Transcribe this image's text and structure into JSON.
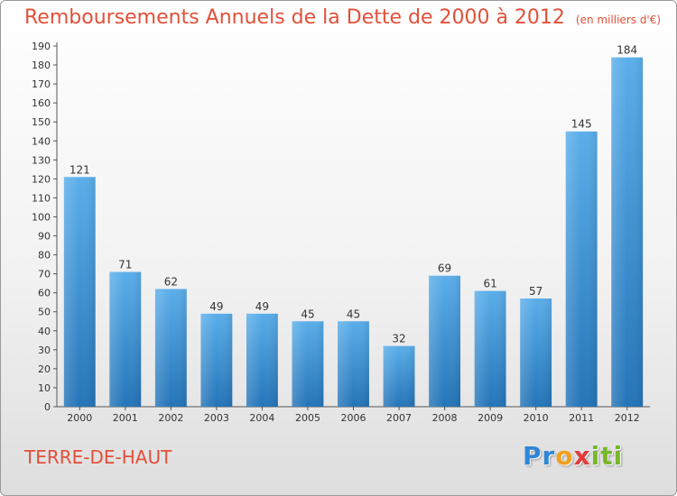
{
  "header": {
    "title": "Remboursements Annuels de la Dette de 2000 à 2012",
    "unit": "(en milliers d'€)"
  },
  "footer": {
    "commune": "TERRE-DE-HAUT",
    "brand": {
      "p1": "Pr",
      "p2": "o",
      "p3": "x",
      "p4": "iti"
    }
  },
  "colors": {
    "bar_top": "#5aaeea",
    "bar_bottom": "#2474b8",
    "title": "#e2503a"
  },
  "chart_data": {
    "type": "bar",
    "title": "Remboursements Annuels de la Dette de 2000 à 2012",
    "xlabel": "",
    "ylabel": "",
    "categories": [
      "2000",
      "2001",
      "2002",
      "2003",
      "2004",
      "2005",
      "2006",
      "2007",
      "2008",
      "2009",
      "2010",
      "2011",
      "2012"
    ],
    "values": [
      121,
      71,
      62,
      49,
      49,
      45,
      45,
      32,
      69,
      61,
      57,
      145,
      184
    ],
    "ylim": [
      0,
      190
    ],
    "ytick_step": 10,
    "grid": false,
    "legend": "none"
  }
}
